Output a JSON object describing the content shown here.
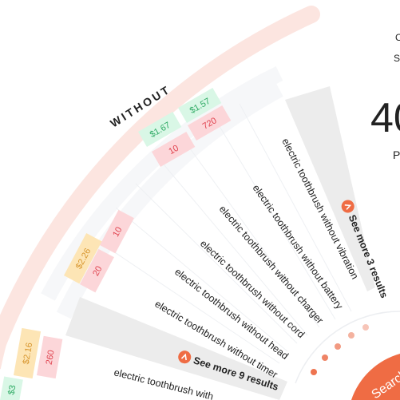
{
  "group_label": "WITHOUT",
  "right_panel": {
    "line1": "C",
    "line2": "Se",
    "big_number": "40",
    "line3": "P"
  },
  "colors": {
    "accent": "#ef6c44",
    "cpc_green_bg": "#d9f7e6",
    "cpc_green_text": "#2daa63",
    "cpc_orange_bg": "#fde5b5",
    "cpc_orange_text": "#d7952d",
    "vol_bg": "#fcd6d9",
    "vol_text": "#e0434f",
    "see_more_bg": "#ececec",
    "band_bg": "#f6f7f9",
    "arc_pink": "#fce5e0"
  },
  "keywords": [
    {
      "label": "electric toothbrush without vibration",
      "cpc": "$1.57",
      "volume": "720"
    },
    {
      "label": "electric toothbrush without battery",
      "cpc": "$1.67",
      "volume": "10"
    },
    {
      "label": "electric toothbrush without charger",
      "cpc": "",
      "volume": ""
    },
    {
      "label": "electric toothbrush without cord",
      "cpc": "",
      "volume": ""
    },
    {
      "label": "electric toothbrush without head",
      "cpc": "$2.26",
      "volume": "10"
    },
    {
      "label": "electric toothbrush without timer",
      "cpc": "",
      "volume": "20"
    },
    {
      "label": "electric toothbrush with",
      "cpc": "$2.16",
      "volume": "260"
    }
  ],
  "see_more": [
    {
      "label": "See more 3 results"
    },
    {
      "label": "See more 9 results"
    }
  ],
  "search_button": {
    "label": "Search"
  },
  "extra_partial": {
    "cpc": "$3"
  }
}
